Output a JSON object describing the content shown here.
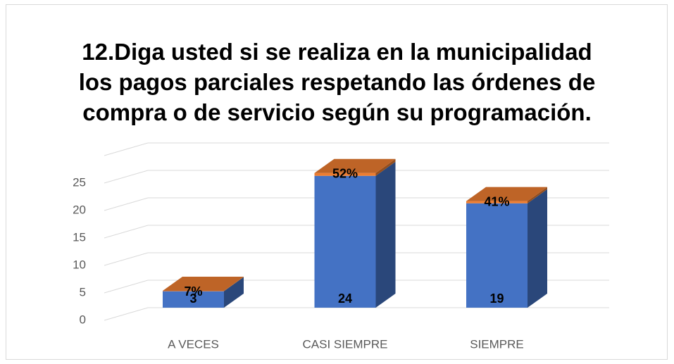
{
  "chart_data": {
    "type": "bar3d_stacked",
    "title": "12.Diga usted si se realiza en la municipalidad los pagos parciales respetando las órdenes de compra o de servicio según su programación.",
    "categories": [
      "A VECES",
      "CASI SIEMPRE",
      "SIEMPRE"
    ],
    "series": [
      {
        "color": "#4472c4",
        "values": [
          3,
          24,
          19
        ]
      },
      {
        "color": "#ed7d31",
        "values": [
          0.07,
          0.52,
          0.41
        ],
        "value_labels": [
          "7%",
          "52%",
          "41%"
        ]
      }
    ],
    "ylim": [
      0,
      30
    ],
    "yticks": [
      0,
      5,
      10,
      15,
      20,
      25
    ],
    "grid": true
  }
}
